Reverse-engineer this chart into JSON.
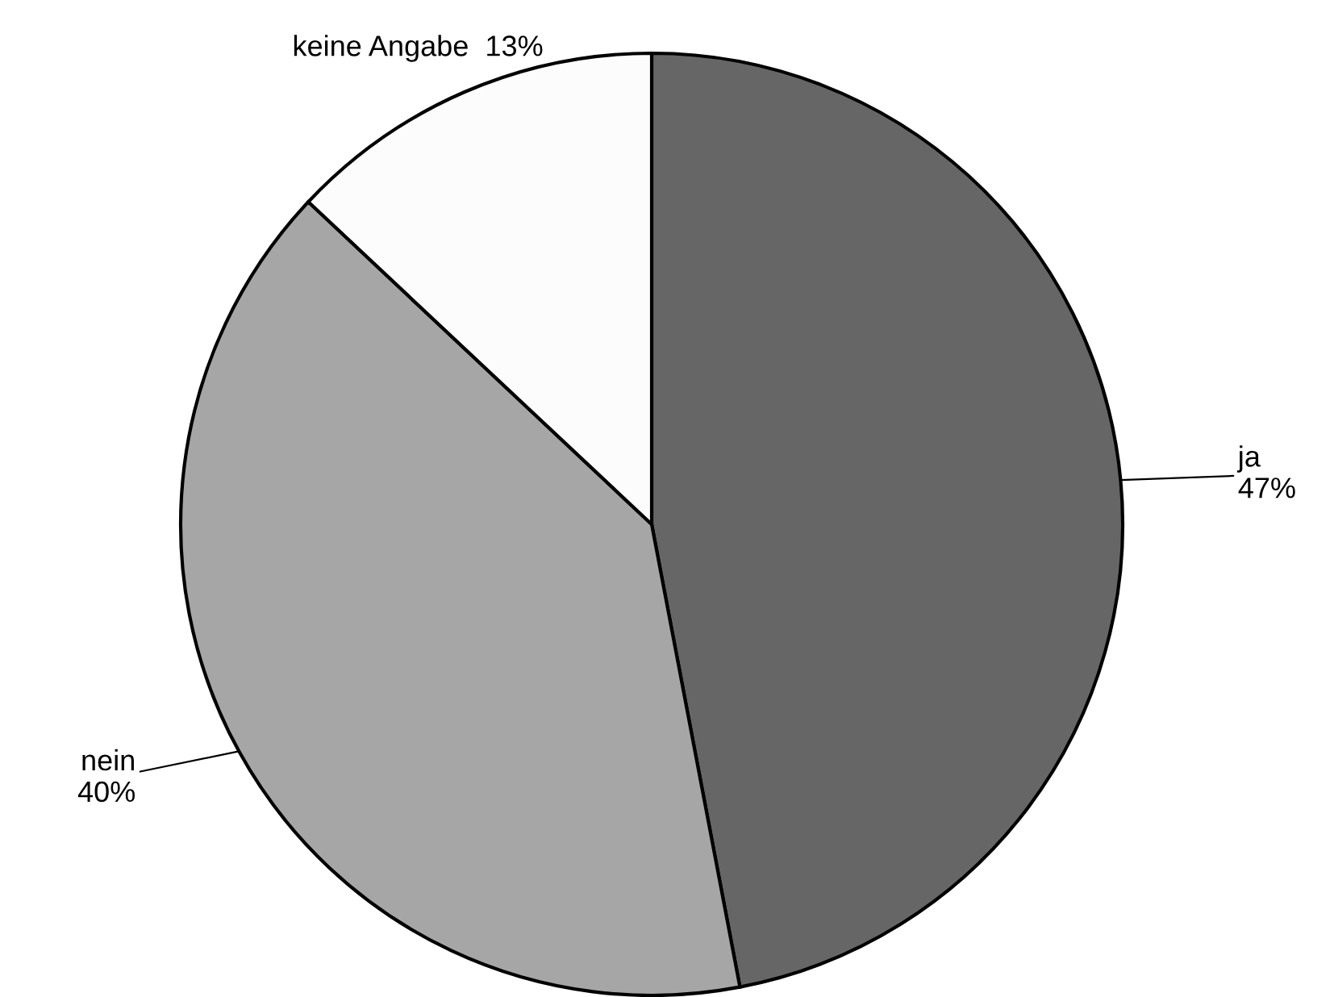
{
  "chart_data": {
    "type": "pie",
    "categories": [
      "ja",
      "nein",
      "keine Angabe"
    ],
    "values": [
      47,
      40,
      13
    ],
    "value_labels": [
      "47%",
      "40%",
      "13%"
    ],
    "colors": [
      "#666666",
      "#a6a6a6",
      "#fcfcfc"
    ],
    "legend": false
  }
}
